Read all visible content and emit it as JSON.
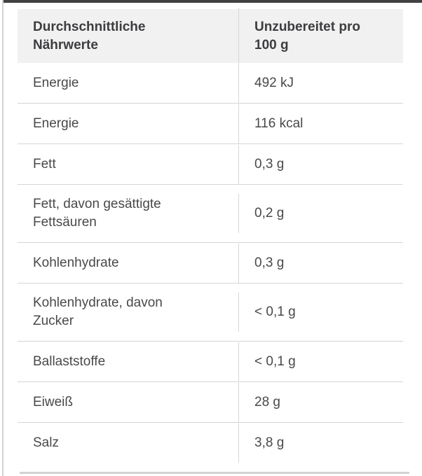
{
  "table": {
    "header": {
      "col1": "Durchschnittliche Nährwerte",
      "col2": "Unzubereitet pro 100 g"
    },
    "rows": [
      {
        "label": "Energie",
        "value": "492 kJ"
      },
      {
        "label": "Energie",
        "value": "116 kcal"
      },
      {
        "label": "Fett",
        "value": "0,3 g"
      },
      {
        "label": "Fett, davon gesättigte Fettsäuren",
        "value": "0,2 g"
      },
      {
        "label": "Kohlenhydrate",
        "value": "0,3 g"
      },
      {
        "label": "Kohlenhydrate, davon Zucker",
        "value": "< 0,1 g"
      },
      {
        "label": "Ballaststoffe",
        "value": "< 0,1 g"
      },
      {
        "label": "Eiweiß",
        "value": "28 g"
      },
      {
        "label": "Salz",
        "value": "3,8 g"
      }
    ]
  },
  "colors": {
    "header_background": "#f1f1f2",
    "header_text": "#3d3d3f",
    "body_text": "#49494b",
    "divider": "#d5d5d5",
    "top_strip": "#414144",
    "bottom_strip": "#d2d2d4"
  }
}
